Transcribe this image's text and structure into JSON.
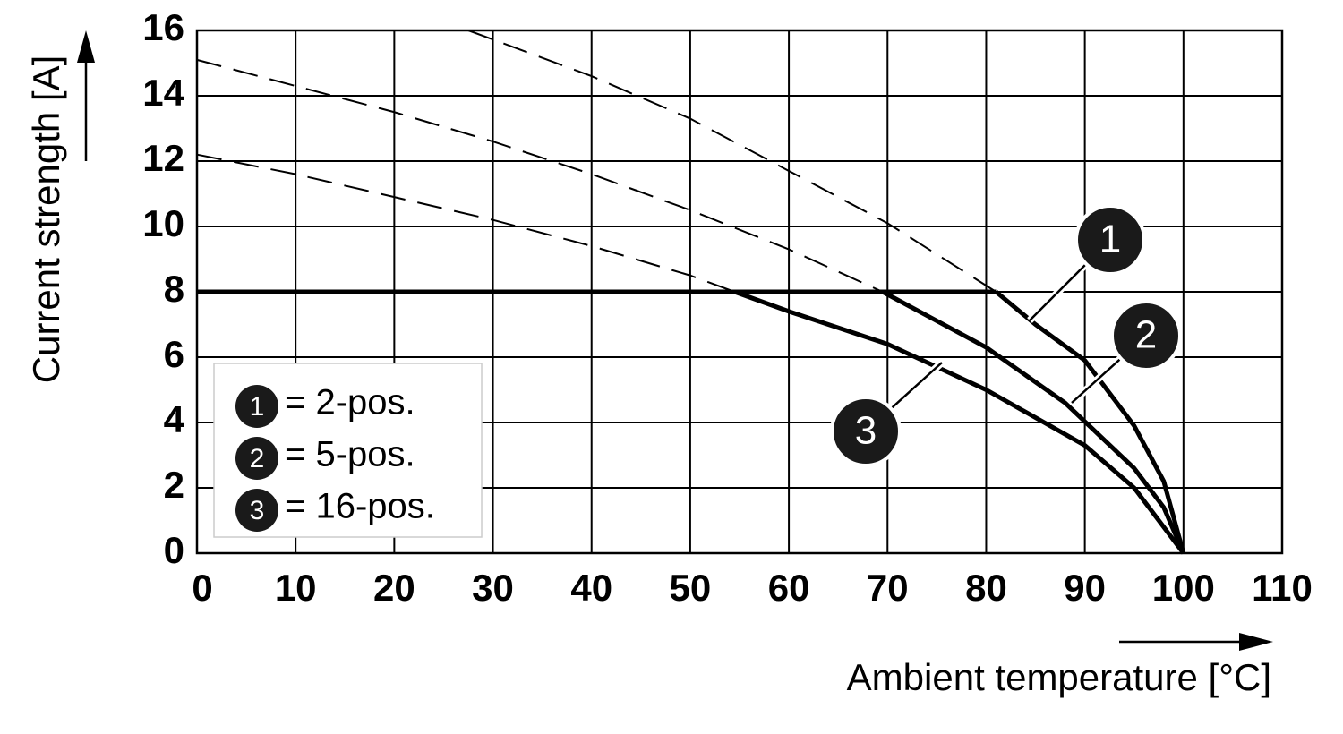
{
  "chart_data": {
    "type": "line",
    "xlabel": "Ambient temperature [°C]",
    "ylabel": "Current strength [A]",
    "xlim": [
      0,
      110
    ],
    "ylim": [
      0,
      16
    ],
    "xticks": [
      0,
      10,
      20,
      30,
      40,
      50,
      60,
      70,
      80,
      90,
      100,
      110
    ],
    "yticks": [
      0,
      2,
      4,
      6,
      8,
      10,
      12,
      14,
      16
    ],
    "grid": true,
    "rated_line": {
      "x": [
        0,
        81
      ],
      "values": [
        8,
        8
      ]
    },
    "series": [
      {
        "label": "1",
        "name": "= 2-pos.",
        "color": "#000000",
        "x": [
          27.5,
          40,
          50,
          60,
          70,
          81,
          85,
          90,
          95,
          98,
          100
        ],
        "values": [
          16,
          14.6,
          13.3,
          11.7,
          10.1,
          8,
          7.0,
          5.9,
          3.9,
          2.2,
          0
        ]
      },
      {
        "label": "2",
        "name": "= 5-pos.",
        "color": "#000000",
        "x": [
          0,
          10,
          20,
          30,
          40,
          50,
          60,
          69.5,
          80,
          88,
          95,
          98,
          100
        ],
        "values": [
          15.1,
          14.3,
          13.5,
          12.6,
          11.6,
          10.5,
          9.3,
          8,
          6.3,
          4.6,
          2.6,
          1.4,
          0
        ]
      },
      {
        "label": "3",
        "name": "= 16-pos.",
        "color": "#000000",
        "x": [
          0,
          10,
          20,
          30,
          40,
          50,
          54.5,
          60,
          70,
          80,
          90,
          95,
          100
        ],
        "values": [
          12.2,
          11.6,
          10.9,
          10.2,
          9.4,
          8.5,
          8,
          7.4,
          6.4,
          5.0,
          3.3,
          2.0,
          0
        ]
      }
    ]
  }
}
